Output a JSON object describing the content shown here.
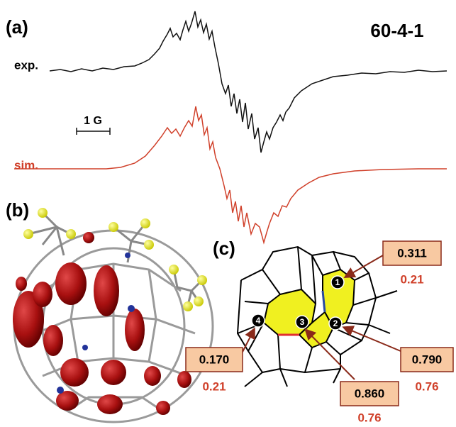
{
  "panel_a": {
    "label": "(a)",
    "title": "60-4-1",
    "exp_label": "exp.",
    "sim_label": "sim.",
    "scale_label": "1 G"
  },
  "panel_b": {
    "label": "(b)"
  },
  "panel_c": {
    "label": "(c)",
    "nodes": [
      "1",
      "2",
      "3",
      "4"
    ],
    "callouts": [
      {
        "top": "0.311",
        "bottom": "0.21"
      },
      {
        "top": "0.170",
        "bottom": "0.21"
      },
      {
        "top": "0.860",
        "bottom": "0.76"
      },
      {
        "top": "0.790",
        "bottom": "0.76"
      }
    ]
  }
}
